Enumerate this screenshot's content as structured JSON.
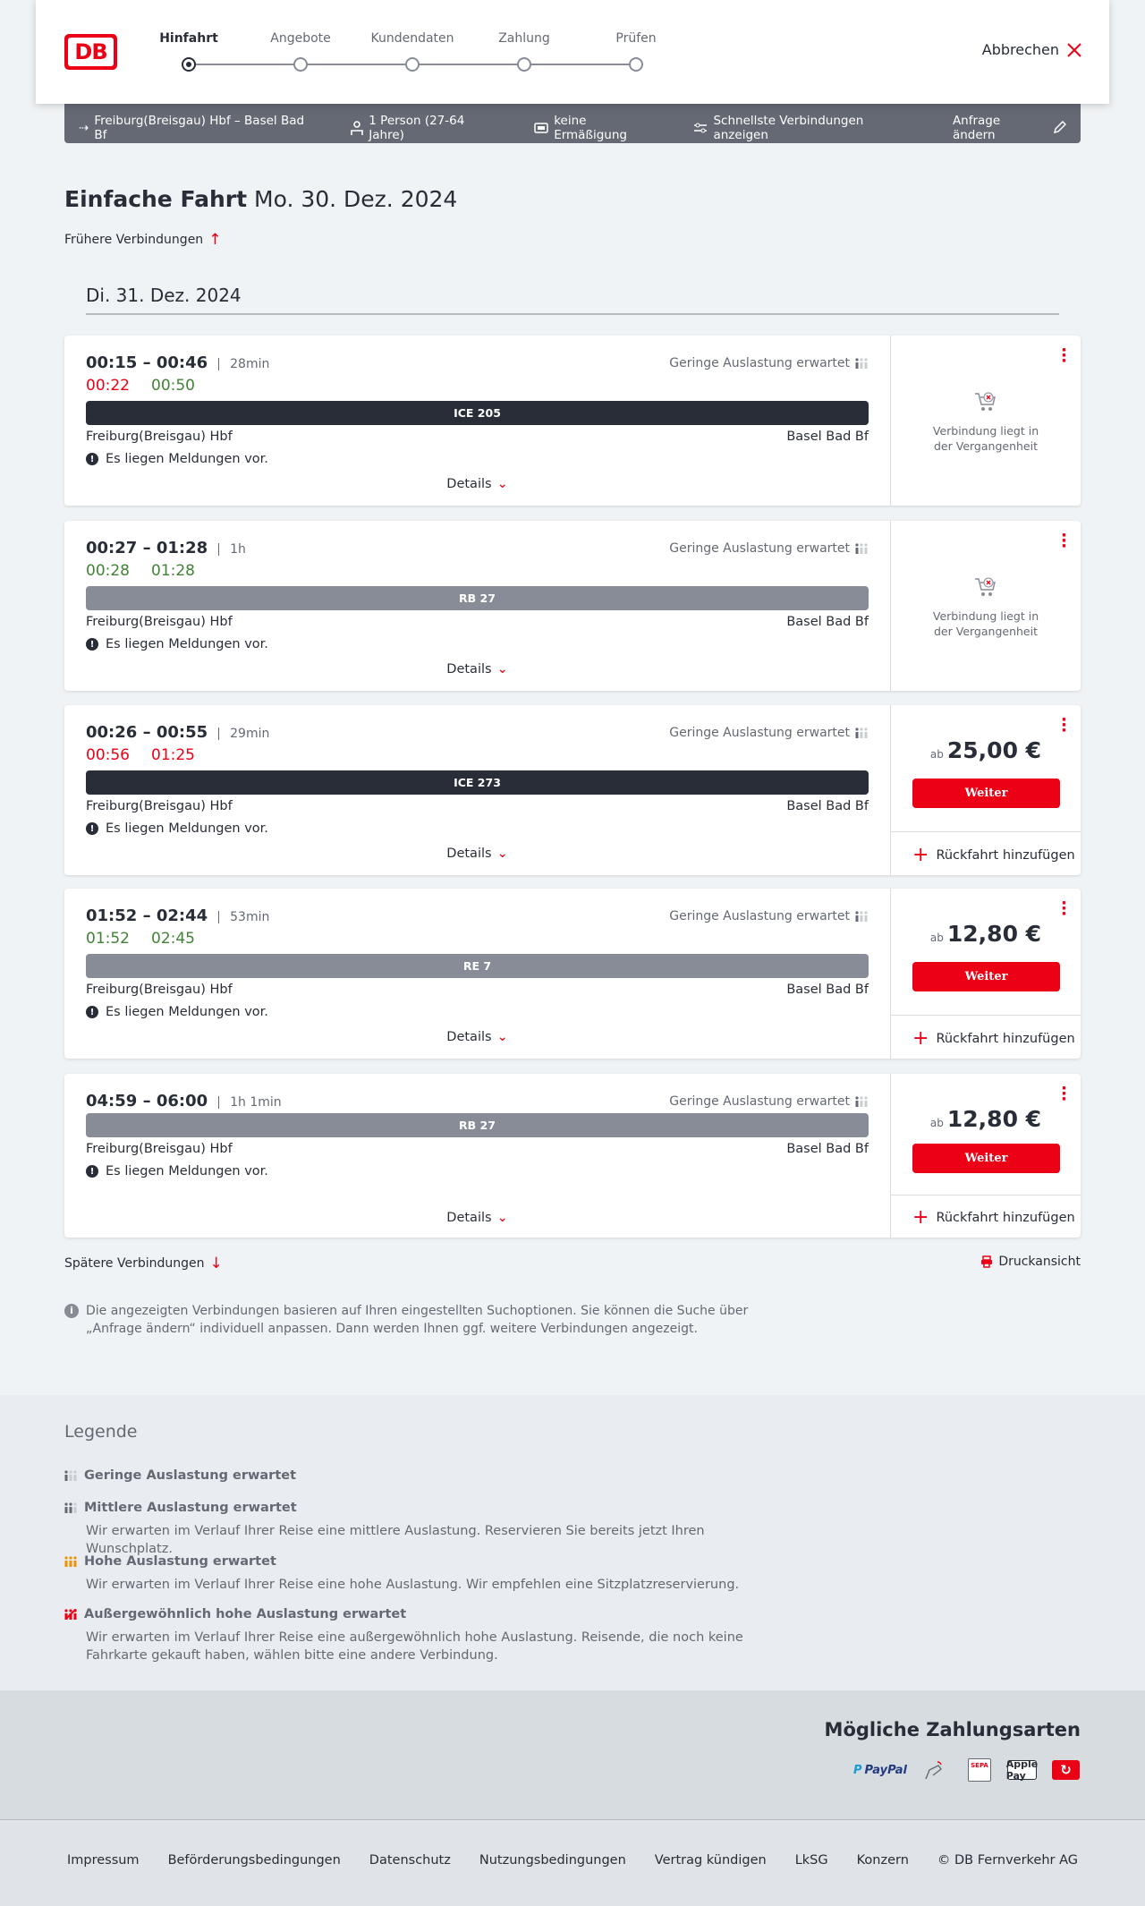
{
  "header": {
    "logo": "DB",
    "steps": [
      "Hinfahrt",
      "Angebote",
      "Kundendaten",
      "Zahlung",
      "Prüfen"
    ],
    "active_step": 0,
    "cancel": "Abbrechen"
  },
  "summary": {
    "route": "Freiburg(Breisgau) Hbf – Basel Bad Bf",
    "passengers": "1 Person (27-64 Jahre)",
    "discount": "keine Ermäßigung",
    "fastest": "Schnellste Verbindungen anzeigen",
    "change": "Anfrage ändern"
  },
  "page": {
    "title": "Einfache Fahrt",
    "date": "Mo. 30. Dez. 2024",
    "earlier": "Frühere Verbindungen",
    "day": "Di. 31. Dez. 2024",
    "later": "Spätere Verbindungen",
    "print": "Druckansicht",
    "info": "Die angezeigten Verbindungen basieren auf Ihren eingestellten Suchoptionen. Sie können die Suche über „Anfrage ändern“ individuell anpassen. Dann werden Ihnen ggf. weitere Verbindungen angezeigt."
  },
  "colors": {
    "brand": "#ec0016",
    "dark": "#282d37",
    "delay": "#ec0016",
    "ontime": "#408335",
    "regional": "#878c96"
  },
  "connections": [
    {
      "times": "00:15 – 00:46",
      "duration": "28min",
      "rt_dep": "00:22",
      "rt_dep_color": "#ec0016",
      "rt_arr": "00:50",
      "rt_arr_color": "#408335",
      "load": "Geringe Auslastung erwartet",
      "train": "ICE 205",
      "train_color": "#282d37",
      "from": "Freiburg(Breisgau) Hbf",
      "to": "Basel Bad Bf",
      "message": "Es liegen Meldungen vor.",
      "details": "Details",
      "past": "Verbindung liegt in der Vergangenheit"
    },
    {
      "times": "00:27 – 01:28",
      "duration": "1h",
      "rt_dep": "00:28",
      "rt_dep_color": "#408335",
      "rt_arr": "01:28",
      "rt_arr_color": "#408335",
      "load": "Geringe Auslastung erwartet",
      "train": "RB 27",
      "train_color": "#878c96",
      "from": "Freiburg(Breisgau) Hbf",
      "to": "Basel Bad Bf",
      "message": "Es liegen Meldungen vor.",
      "details": "Details",
      "past": "Verbindung liegt in der Vergangenheit"
    },
    {
      "times": "00:26 – 00:55",
      "duration": "29min",
      "rt_dep": "00:56",
      "rt_dep_color": "#ec0016",
      "rt_arr": "01:25",
      "rt_arr_color": "#ec0016",
      "load": "Geringe Auslastung erwartet",
      "train": "ICE 273",
      "train_color": "#282d37",
      "from": "Freiburg(Breisgau) Hbf",
      "to": "Basel Bad Bf",
      "message": "Es liegen Meldungen vor.",
      "details": "Details",
      "price_prefix": "ab",
      "price": "25,00 €",
      "button": "Weiter",
      "return": "Rückfahrt hinzufügen"
    },
    {
      "times": "01:52 – 02:44",
      "duration": "53min",
      "rt_dep": "01:52",
      "rt_dep_color": "#408335",
      "rt_arr": "02:45",
      "rt_arr_color": "#408335",
      "load": "Geringe Auslastung erwartet",
      "train": "RE 7",
      "train_color": "#878c96",
      "from": "Freiburg(Breisgau) Hbf",
      "to": "Basel Bad Bf",
      "message": "Es liegen Meldungen vor.",
      "details": "Details",
      "price_prefix": "ab",
      "price": "12,80 €",
      "button": "Weiter",
      "return": "Rückfahrt hinzufügen"
    },
    {
      "times": "04:59 – 06:00",
      "duration": "1h 1min",
      "load": "Geringe Auslastung erwartet",
      "train": "RB 27",
      "train_color": "#878c96",
      "from": "Freiburg(Breisgau) Hbf",
      "to": "Basel Bad Bf",
      "message": "Es liegen Meldungen vor.",
      "details": "Details",
      "price_prefix": "ab",
      "price": "12,80 €",
      "button": "Weiter",
      "return": "Rückfahrt hinzufügen"
    }
  ],
  "legend": {
    "title": "Legende",
    "items": [
      {
        "title": "Geringe Auslastung erwartet",
        "level": 1,
        "color": "#646973"
      },
      {
        "title": "Mittlere Auslastung erwartet",
        "text": "Wir erwarten im Verlauf Ihrer Reise eine mittlere Auslastung. Reservieren Sie bereits jetzt Ihren Wunschplatz.",
        "level": 2,
        "color": "#646973"
      },
      {
        "title": "Hohe Auslastung erwartet",
        "text": "Wir erwarten im Verlauf Ihrer Reise eine hohe Auslastung. Wir empfehlen eine Sitzplatzreservierung.",
        "level": 3,
        "color": "#f39200"
      },
      {
        "title": "Außergewöhnlich hohe Auslastung erwartet",
        "text": "Wir erwarten im Verlauf Ihrer Reise eine außergewöhnlich hohe Auslastung. Reisende, die noch keine Fahrkarte gekauft haben, wählen bitte eine andere Verbindung.",
        "level": 4,
        "color": "#ec0016"
      }
    ]
  },
  "payment": {
    "title": "Mögliche Zahlungsarten",
    "methods": [
      "PayPal",
      "Kreditkarte",
      "SEPA",
      "Apple Pay",
      "DB Bonus"
    ]
  },
  "footer": {
    "links": [
      "Impressum",
      "Beförderungsbedingungen",
      "Datenschutz",
      "Nutzungsbedingungen",
      "Vertrag kündigen",
      "LkSG",
      "Konzern",
      "© DB Fernverkehr AG"
    ]
  }
}
